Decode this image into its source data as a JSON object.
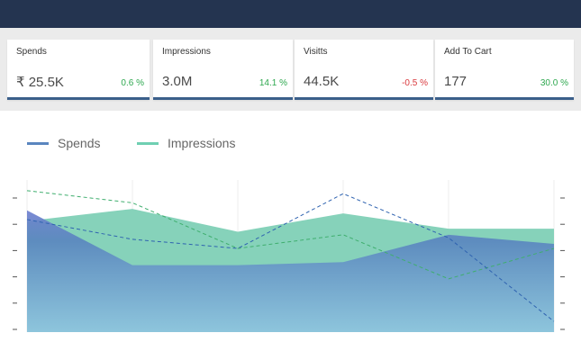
{
  "header": {},
  "kpis": [
    {
      "label": "Spends",
      "value": "₹ 25.5K",
      "change": "0.6 %",
      "trend": "up"
    },
    {
      "label": "Impressions",
      "value": "3.0M",
      "change": "14.1 %",
      "trend": "up"
    },
    {
      "label": "Visitts",
      "value": "44.5K",
      "change": "-0.5 %",
      "trend": "down"
    },
    {
      "label": "Add To Cart",
      "value": "177",
      "change": "30.0 %",
      "trend": "up"
    }
  ],
  "colors": {
    "topbar": "#243450",
    "spends": "#5a86bf",
    "impressions": "#6fcfb2",
    "positive": "#2ea84f",
    "negative": "#d9383c"
  },
  "chart_data": {
    "type": "area",
    "title": "",
    "xlabel": "",
    "ylabel": "",
    "legend_position": "top-left",
    "grid": "vertical",
    "x": [
      1,
      2,
      3,
      4,
      5,
      6
    ],
    "ylim": [
      0,
      100
    ],
    "y2lim": [
      0,
      100
    ],
    "series": [
      {
        "name": "Spends",
        "type": "area",
        "axis": "left",
        "values": [
          80,
          44,
          44,
          46,
          64,
          58
        ]
      },
      {
        "name": "Impressions",
        "type": "area",
        "axis": "left",
        "values": [
          73,
          81,
          66,
          78,
          68,
          68
        ]
      },
      {
        "name": "Spends",
        "type": "line-dashed",
        "axis": "right",
        "values": [
          74,
          61,
          55,
          91,
          62,
          7
        ]
      },
      {
        "name": "Impressions",
        "type": "line-dashed",
        "axis": "right",
        "values": [
          93,
          85,
          55,
          64,
          35,
          55
        ]
      }
    ]
  }
}
